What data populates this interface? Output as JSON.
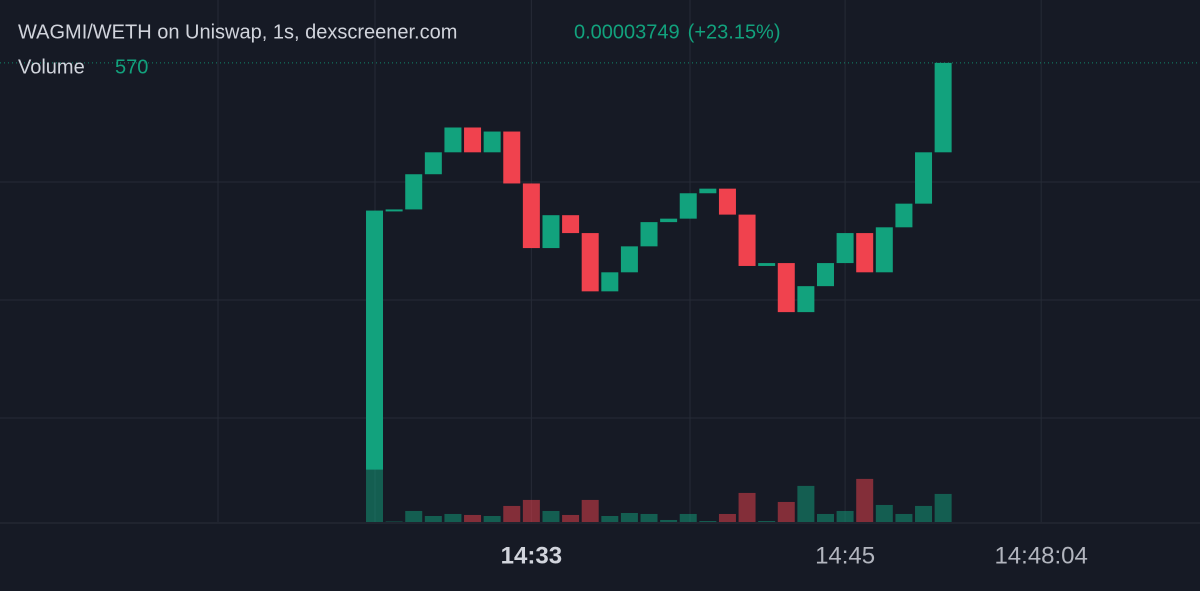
{
  "chart_data": {
    "type": "candlestick",
    "title": "WAGMI/WETH on Uniswap, 1s, dexscreener.com",
    "change_label": "(+23.15%)",
    "volume_label": "Volume",
    "up_color": "#12a27d",
    "down_color": "#f0424e",
    "open": [
      3.044e-05,
      3.493e-05,
      3.495e-05,
      3.556e-05,
      3.594e-05,
      3.637e-05,
      3.594e-05,
      3.63e-05,
      3.54e-05,
      3.428e-05,
      3.485e-05,
      3.454e-05,
      3.353e-05,
      3.386e-05,
      3.431e-05,
      3.473e-05,
      3.479e-05,
      3.523e-05,
      3.531e-05,
      3.486e-05,
      3.397e-05,
      3.402e-05,
      3.317e-05,
      3.362e-05,
      3.402e-05,
      3.454e-05,
      3.386e-05,
      3.464e-05,
      3.505e-05,
      3.594e-05
    ],
    "close": [
      3.493e-05,
      3.495e-05,
      3.556e-05,
      3.594e-05,
      3.637e-05,
      3.594e-05,
      3.63e-05,
      3.54e-05,
      3.428e-05,
      3.485e-05,
      3.454e-05,
      3.353e-05,
      3.386e-05,
      3.431e-05,
      3.473e-05,
      3.479e-05,
      3.523e-05,
      3.531e-05,
      3.486e-05,
      3.397e-05,
      3.402e-05,
      3.317e-05,
      3.362e-05,
      3.402e-05,
      3.454e-05,
      3.386e-05,
      3.464e-05,
      3.505e-05,
      3.594e-05,
      3.749e-05
    ],
    "volume": {
      "values": [
        2585,
        10,
        224,
        122,
        163,
        143,
        122,
        326,
        448,
        224,
        143,
        448,
        122,
        183,
        163,
        41,
        163,
        20,
        163,
        590,
        20,
        407,
        733,
        163,
        224,
        875,
        346,
        163,
        326,
        570
      ],
      "ylim": [
        0,
        2700
      ]
    },
    "ylim": [
      3e-05,
      3.78e-05
    ],
    "xlim": [
      -19.1,
      42.1
    ],
    "xticks": [
      {
        "value": 8,
        "label": "14:33"
      },
      {
        "value": 24,
        "label": "14:45"
      },
      {
        "value": 34,
        "label": "14:48:04"
      }
    ]
  }
}
